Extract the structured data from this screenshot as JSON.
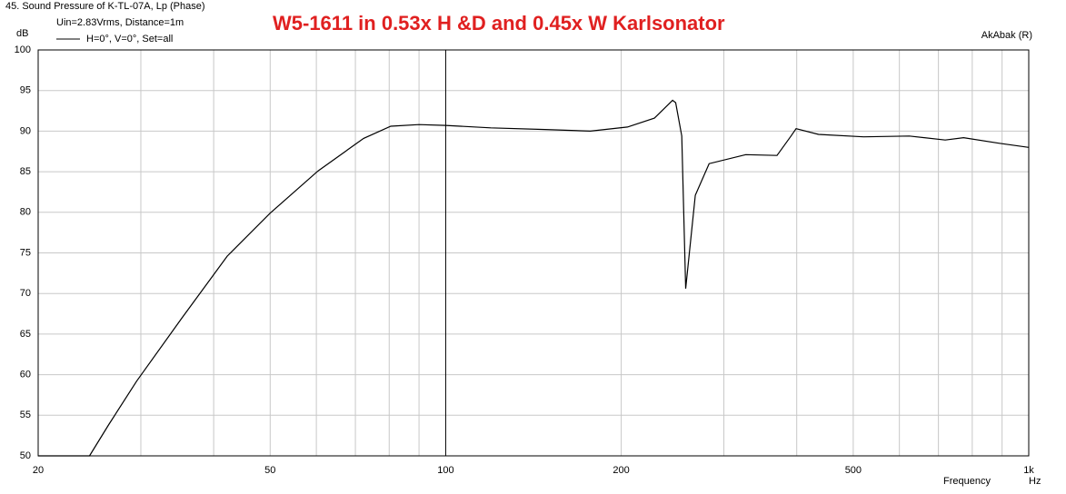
{
  "chart_data": {
    "type": "line",
    "title": "W5-1611 in 0.53x H &D and 0.45x W Karlsonator",
    "header": "45. Sound Pressure of K-TL-07A, Lp (Phase)",
    "subtitle": "Uin=2.83Vrms, Distance=1m",
    "source": "AkAbak (R)",
    "y_unit": "dB",
    "x_label": "Frequency",
    "x_unit": "Hz",
    "x_log": true,
    "grid": true,
    "xlim": [
      20,
      1000
    ],
    "ylim": [
      50,
      100
    ],
    "xticks": [
      20,
      50,
      100,
      200,
      500,
      {
        "value": 1000,
        "label": "1k"
      }
    ],
    "xminor_ticks": [
      30,
      40,
      60,
      70,
      80,
      90,
      300,
      400,
      600,
      700,
      800,
      900
    ],
    "yticks": [
      50,
      55,
      60,
      65,
      70,
      75,
      80,
      85,
      90,
      95,
      100
    ],
    "x": [
      20,
      24.5,
      26.4,
      29.5,
      35.3,
      42.2,
      50,
      60.4,
      72.3,
      80.5,
      90,
      100,
      119.5,
      148,
      177,
      205,
      228,
      245,
      248,
      254,
      258,
      268,
      283,
      327,
      370,
      391,
      399,
      436,
      521,
      624,
      719,
      773,
      891,
      1000
    ],
    "series": [
      {
        "name": "H=0°, V=0°, Set=all",
        "color": "#000000",
        "values": [
          50,
          50,
          53.8,
          59.2,
          67,
          74.6,
          79.9,
          85.1,
          89.1,
          90.6,
          90.8,
          90.7,
          90.4,
          90.2,
          90.0,
          90.5,
          91.6,
          93.8,
          93.5,
          89.4,
          70.6,
          82.1,
          86.0,
          87.1,
          87.0,
          89.4,
          90.3,
          89.6,
          89.3,
          89.4,
          88.9,
          89.2,
          88.5,
          88.0
        ]
      }
    ]
  }
}
